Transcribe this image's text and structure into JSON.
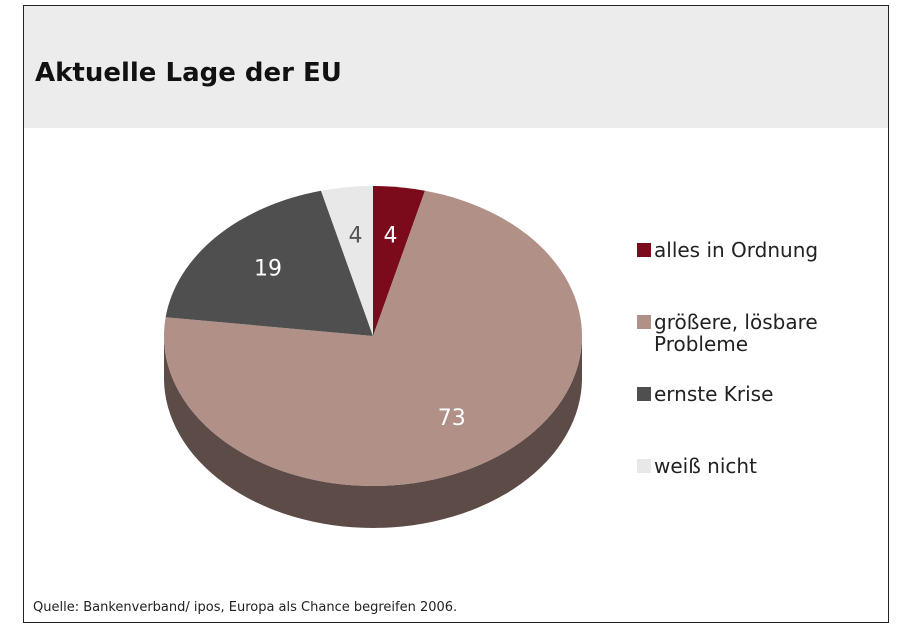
{
  "chart_data": {
    "type": "pie",
    "title": "Aktuelle Lage der EU",
    "categories": [
      "alles in Ordnung",
      "größere, lösbare Probleme",
      "ernste Krise",
      "weiß nicht"
    ],
    "values": [
      4,
      73,
      19,
      4
    ],
    "colors": [
      "#7b0a1a",
      "#b09087",
      "#4f4f4f",
      "#e8e8e8"
    ],
    "source": "Quelle: Bankenverband/ ipos, Europa als Chance begreifen 2006."
  }
}
